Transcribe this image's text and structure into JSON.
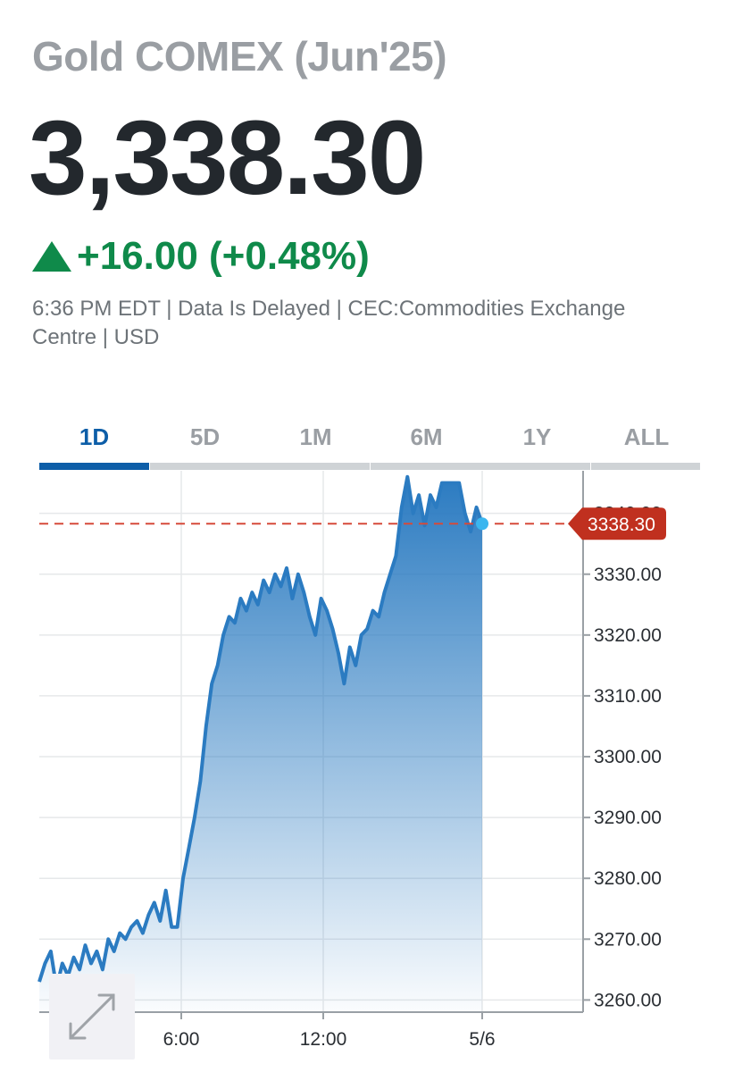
{
  "header": {
    "title": "Gold COMEX (Jun'25)",
    "price": "3,338.30",
    "change": "+16.00 (+0.48%)",
    "change_icon": "triangle-up-icon",
    "meta": "6:36 PM EDT | Data Is Delayed | CEC:Commodities Exchange Centre | USD"
  },
  "tabs": [
    {
      "label": "1D",
      "active": true
    },
    {
      "label": "5D",
      "active": false
    },
    {
      "label": "1M",
      "active": false
    },
    {
      "label": "6M",
      "active": false
    },
    {
      "label": "1Y",
      "active": false
    },
    {
      "label": "ALL",
      "active": false
    }
  ],
  "colors": {
    "accent": "#0d5ea8",
    "positive": "#0f8a4a",
    "line": "#2b7bc1",
    "last_price": "#c0392b"
  },
  "chart_data": {
    "type": "area",
    "x_tick_labels": [
      "6:00",
      "12:00",
      "5/6"
    ],
    "y_tick_labels": [
      "3260.00",
      "3270.00",
      "3280.00",
      "3290.00",
      "3300.00",
      "3310.00",
      "3320.00",
      "3330.00",
      "3340.00"
    ],
    "ylim": [
      3258,
      3347
    ],
    "last_price_label": "3338.30",
    "last_price": 3338.3,
    "grid": true,
    "series": [
      {
        "values": [
          3263,
          3266,
          3268,
          3262,
          3266,
          3264,
          3267,
          3265,
          3269,
          3266,
          3268,
          3265,
          3270,
          3268,
          3271,
          3270,
          3272,
          3273,
          3271,
          3274,
          3276,
          3273,
          3278,
          3272,
          3272,
          3280,
          3285,
          3290,
          3296,
          3305,
          3312,
          3315,
          3320,
          3323,
          3322,
          3326,
          3324,
          3327,
          3325,
          3329,
          3327,
          3330,
          3328,
          3331,
          3326,
          3330,
          3327,
          3323,
          3320,
          3326,
          3324,
          3321,
          3317,
          3312,
          3318,
          3315,
          3320,
          3321,
          3324,
          3323,
          3327,
          3330,
          3333,
          3341,
          3346,
          3340,
          3343,
          3338,
          3343,
          3341,
          3345,
          3345,
          3345,
          3345,
          3340,
          3337,
          3341,
          3338.3
        ]
      }
    ],
    "expand_icon": "expand-arrows-icon"
  }
}
